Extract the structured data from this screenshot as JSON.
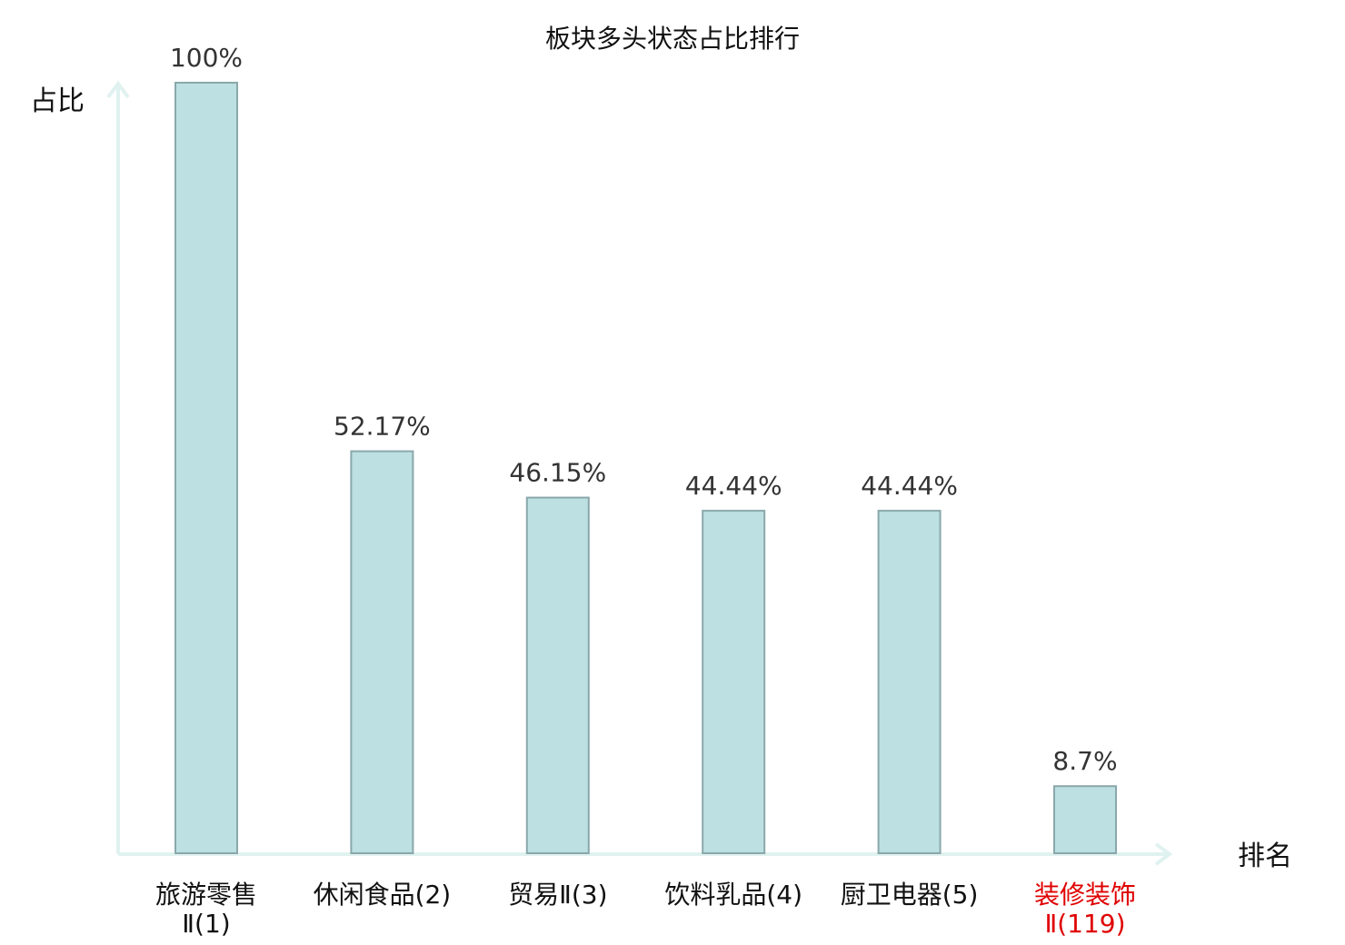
{
  "chart_data": {
    "type": "bar",
    "title": "板块多头状态占比排行",
    "ylabel": "占比",
    "xlabel": "排名",
    "ylim": [
      0,
      100
    ],
    "grid": false,
    "categories": [
      {
        "lines": [
          "旅游零售",
          "Ⅱ(1)"
        ],
        "highlight": false
      },
      {
        "lines": [
          "休闲食品(2)"
        ],
        "highlight": false
      },
      {
        "lines": [
          "贸易Ⅱ(3)"
        ],
        "highlight": false
      },
      {
        "lines": [
          "饮料乳品(4)"
        ],
        "highlight": false
      },
      {
        "lines": [
          "厨卫电器(5)"
        ],
        "highlight": false
      },
      {
        "lines": [
          "装修装饰",
          "Ⅱ(119)"
        ],
        "highlight": true
      }
    ],
    "values": [
      100,
      52.17,
      46.15,
      44.44,
      44.44,
      8.7
    ],
    "value_labels": [
      "100%",
      "52.17%",
      "46.15%",
      "44.44%",
      "44.44%",
      "8.7%"
    ],
    "colors": {
      "bar_fill": "#bde0e2",
      "bar_stroke": "#8aa8ab",
      "axis": "#e0f2ef",
      "highlight_text": "#e00000",
      "text": "#111111"
    }
  }
}
